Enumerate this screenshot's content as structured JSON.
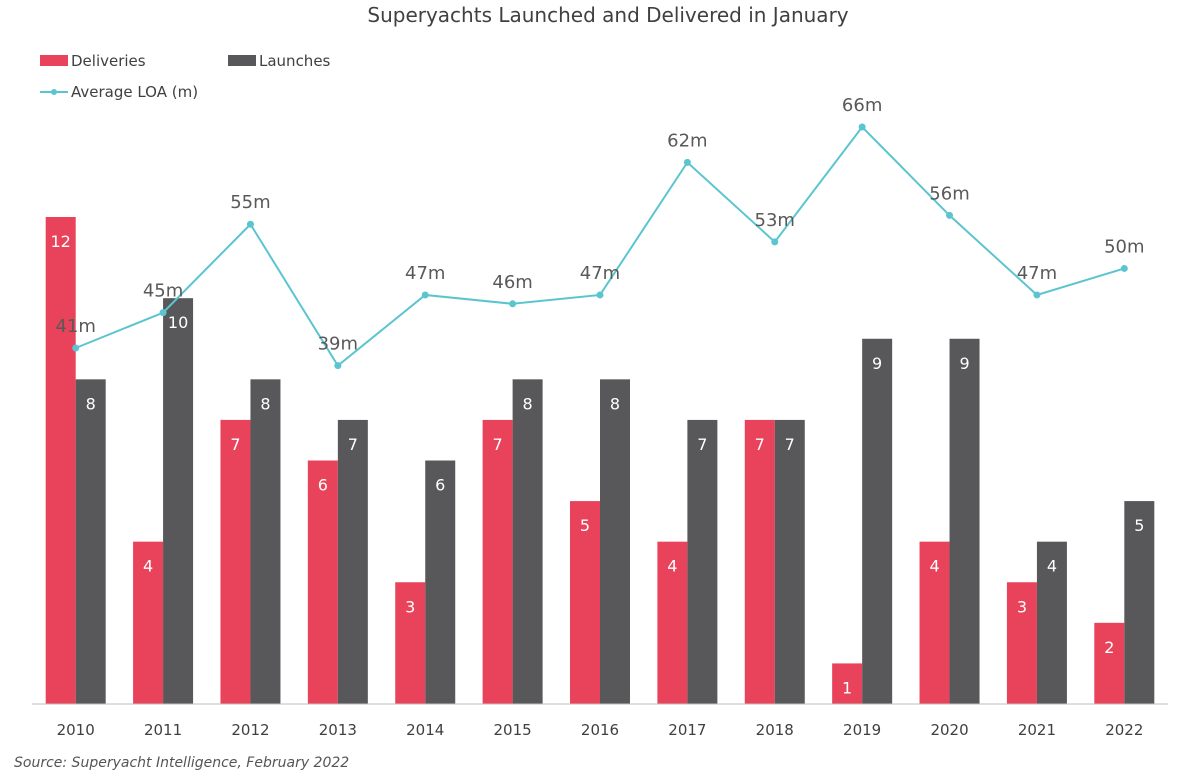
{
  "chart_data": {
    "type": "bar",
    "title": "Superyachts Launched and Delivered in January",
    "categories": [
      "2010",
      "2011",
      "2012",
      "2013",
      "2014",
      "2015",
      "2016",
      "2017",
      "2018",
      "2019",
      "2020",
      "2021",
      "2022"
    ],
    "series": [
      {
        "name": "Deliveries",
        "kind": "bar",
        "color": "#e8435a",
        "values": [
          12,
          4,
          7,
          6,
          3,
          7,
          5,
          4,
          7,
          1,
          4,
          3,
          2
        ]
      },
      {
        "name": "Launches",
        "kind": "bar",
        "color": "#58585b",
        "values": [
          8,
          10,
          8,
          7,
          6,
          8,
          8,
          7,
          7,
          9,
          9,
          4,
          5
        ]
      },
      {
        "name": "Average LOA (m)",
        "kind": "line",
        "color": "#5bc5cf",
        "values": [
          41,
          45,
          55,
          39,
          47,
          46,
          47,
          62,
          53,
          66,
          56,
          47,
          50
        ],
        "label_suffix": "m"
      }
    ],
    "legend_position": "top-left",
    "grid": false,
    "bar_ylim": [
      0,
      12
    ],
    "line_ylim": [
      0,
      90
    ]
  },
  "source": "Source: Superyacht Intelligence, February 2022"
}
